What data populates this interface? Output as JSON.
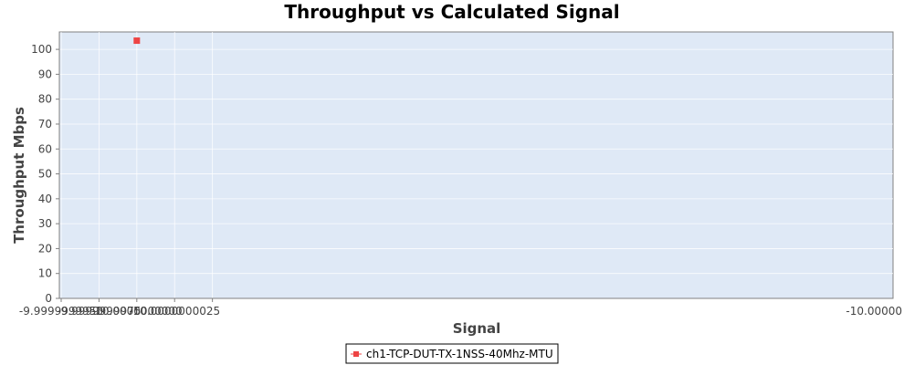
{
  "chart_data": {
    "type": "scatter",
    "title": "Throughput vs Calculated Signal",
    "xlabel": "Signal",
    "ylabel": "Throughput Mbps",
    "xlim": [
      -9.999999995,
      -10.00000005
    ],
    "ylim": [
      0,
      107
    ],
    "x_ticks": [
      -9.999999995,
      -9.9999999975,
      -10.0,
      -10.0000000025,
      -10.000000005
    ],
    "x_tick_labels": [
      "-9.9999999950",
      "-9.9999999975",
      "-10.0000000000",
      "-10.0000000025",
      "-10.00000"
    ],
    "y_ticks": [
      0,
      10,
      20,
      30,
      40,
      50,
      60,
      70,
      80,
      90,
      100
    ],
    "y_tick_labels": [
      "0",
      "10",
      "20",
      "30",
      "40",
      "50",
      "60",
      "70",
      "80",
      "90",
      "100"
    ],
    "grid": true,
    "legend_position": "bottom-center",
    "series": [
      {
        "name": "ch1-TCP-DUT-TX-1NSS-40Mhz-MTU",
        "color": "#ee4444",
        "marker": "square",
        "points": [
          {
            "x": -10.0,
            "y": 103.5
          }
        ]
      }
    ],
    "plot_background": "#dfe9f6"
  }
}
